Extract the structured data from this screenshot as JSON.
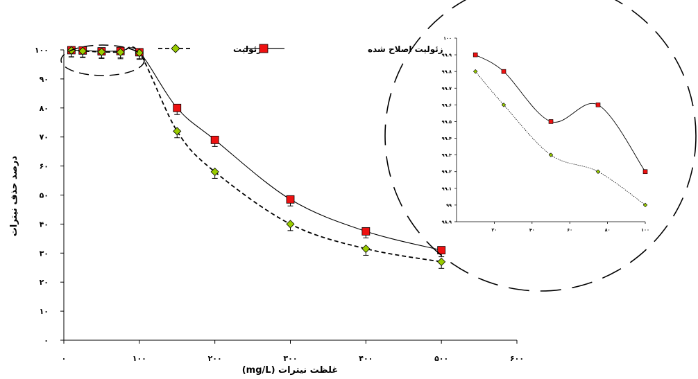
{
  "chart_data": [
    {
      "type": "line",
      "xlabel": "غلظت نیترات (mg/L)",
      "ylabel": "درصد حذف نیترات",
      "xlim": [
        0,
        600
      ],
      "ylim": [
        0,
        100
      ],
      "x_ticks": [
        0,
        100,
        200,
        300,
        400,
        500,
        600
      ],
      "x_tick_labels": [
        "۰",
        "۱۰۰",
        "۲۰۰",
        "۳۰۰",
        "۴۰۰",
        "۵۰۰",
        "۶۰۰"
      ],
      "y_ticks": [
        0,
        10,
        20,
        30,
        40,
        50,
        60,
        70,
        80,
        90,
        100
      ],
      "y_tick_labels": [
        "۰",
        "۱۰",
        "۲۰",
        "۳۰",
        "۴۰",
        "۵۰",
        "۶۰",
        "۷۰",
        "۸۰",
        "۹۰",
        "۱۰۰"
      ],
      "legend_position": "top",
      "series": [
        {
          "name": "زئولیت اصلاح شده",
          "color": "#ee1111",
          "marker": "square",
          "line": "solid",
          "x": [
            10,
            25,
            50,
            75,
            100,
            150,
            200,
            300,
            400,
            500
          ],
          "y": [
            99.9,
            99.8,
            99.5,
            99.6,
            99.2,
            80,
            69,
            48.5,
            37.5,
            31
          ],
          "error": [
            1.3,
            1.3,
            1.3,
            1.3,
            1.3,
            1.3,
            1.3,
            1.3,
            1.3,
            1.3
          ]
        },
        {
          "name": "زئولیت",
          "color": "#99cc00",
          "marker": "diamond",
          "line": "dashed",
          "x": [
            10,
            25,
            50,
            75,
            100,
            150,
            200,
            300,
            400,
            500
          ],
          "y": [
            99.8,
            99.6,
            99.3,
            99.2,
            99.0,
            72,
            58,
            40,
            31.5,
            27
          ],
          "error": [
            1.3,
            1.3,
            1.3,
            1.3,
            1.3,
            1.3,
            1.3,
            1.3,
            1.3,
            1.3
          ]
        }
      ],
      "highlight": "dashed ellipse around low-concentration points"
    },
    {
      "type": "line",
      "role": "inset",
      "xlim": [
        0,
        100
      ],
      "ylim": [
        98.9,
        100
      ],
      "x_ticks": [
        20,
        40,
        60,
        80,
        100
      ],
      "x_tick_labels": [
        "۲۰",
        "۴۰",
        "۶۰",
        "۸۰",
        "۱۰۰"
      ],
      "y_ticks": [
        98.9,
        99,
        99.1,
        99.2,
        99.3,
        99.4,
        99.5,
        99.6,
        99.7,
        99.8,
        99.9,
        100
      ],
      "y_tick_labels": [
        "۹۸.۹",
        "۹۹",
        "۹۹.۱",
        "۹۹.۲",
        "۹۹.۳",
        "۹۹.۴",
        "۹۹.۵",
        "۹۹.۶",
        "۹۹.۷",
        "۹۹.۸",
        "۹۹.۹",
        "۱۰۰"
      ],
      "series": [
        {
          "name": "زئولیت اصلاح شده",
          "color": "#ee1111",
          "marker": "square",
          "line": "solid",
          "x": [
            10,
            25,
            50,
            75,
            100
          ],
          "y": [
            99.9,
            99.8,
            99.5,
            99.6,
            99.2
          ]
        },
        {
          "name": "زئولیت",
          "color": "#99cc00",
          "marker": "diamond",
          "line": "dotted",
          "x": [
            10,
            25,
            50,
            75,
            100
          ],
          "y": [
            99.8,
            99.6,
            99.3,
            99.2,
            99.0
          ]
        }
      ],
      "highlight": "dashed circle around inset"
    }
  ]
}
